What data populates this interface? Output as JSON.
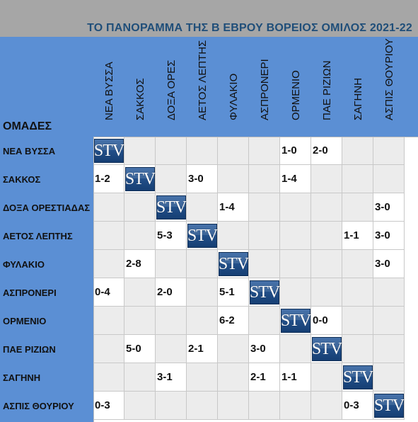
{
  "title": "ΤΟ ΠΑΝΟΡΑΜΜΑ ΤΗΣ Β ΕΒΡΟΥ ΒΟΡΕΙΟΣ ΟΜΙΛΟΣ 2021-22",
  "team_header": "ΟΜΑΔΕΣ",
  "logo_text": "STV",
  "columns": [
    "ΝΕΑ ΒΥΣΣΑ",
    "ΣΑΚΚΟΣ",
    "ΔΟΞΑ ΟΡΕΣ",
    "ΑΕΤΟΣ ΛΕΠΤΗΣ",
    "ΦΥΛΑΚΙΟ",
    "ΑΣΠΡΟΝΕΡΙ",
    "ΟΡΜΕΝΙΟ",
    "ΠΑΕ ΡΙΖΙΩΝ",
    "ΣΑΓΗΝΗ",
    "ΑΣΠΙΣ ΘΟΥΡΙΟΥ"
  ],
  "rows": [
    {
      "team": "ΝΕΑ ΒΥΣΣΑ",
      "results": [
        "",
        "",
        "",
        "",
        "",
        "",
        "1-0",
        "2-0",
        "",
        ""
      ]
    },
    {
      "team": "ΣΑΚΚΟΣ",
      "results": [
        "1-2",
        "",
        "",
        "3-0",
        "",
        "",
        "1-4",
        "",
        "",
        ""
      ]
    },
    {
      "team": "ΔΟΞΑ ΟΡΕΣΤΙΑΔΑΣ",
      "results": [
        "",
        "",
        "",
        "",
        "1-4",
        "",
        "",
        "",
        "",
        "3-0"
      ]
    },
    {
      "team": "ΑΕΤΟΣ ΛΕΠΤΗΣ",
      "results": [
        "",
        "",
        "5-3",
        "",
        "",
        "",
        "",
        "",
        "1-1",
        "3-0"
      ]
    },
    {
      "team": "ΦΥΛΑΚΙΟ",
      "results": [
        "",
        "2-8",
        "",
        "",
        "",
        "",
        "",
        "",
        "",
        "3-0"
      ]
    },
    {
      "team": "ΑΣΠΡΟΝΕΡΙ",
      "results": [
        "0-4",
        "",
        "2-0",
        "",
        "5-1",
        "",
        "",
        "",
        "",
        ""
      ]
    },
    {
      "team": "ΟΡΜΕΝΙΟ",
      "results": [
        "",
        "",
        "",
        "",
        "6-2",
        "",
        "",
        "0-0",
        "",
        ""
      ]
    },
    {
      "team": "ΠΑΕ ΡΙΖΙΩΝ",
      "results": [
        "",
        "5-0",
        "",
        "2-1",
        "",
        "3-0",
        "",
        "",
        "",
        ""
      ]
    },
    {
      "team": "ΣΑΓΗΝΗ",
      "results": [
        "",
        "",
        "3-1",
        "",
        "",
        "2-1",
        "1-1",
        "",
        "",
        ""
      ]
    },
    {
      "team": "ΑΣΠΙΣ ΘΟΥΡΙΟΥ",
      "results": [
        "0-3",
        "",
        "",
        "",
        "",
        "",
        "",
        "",
        "0-3",
        ""
      ]
    }
  ]
}
